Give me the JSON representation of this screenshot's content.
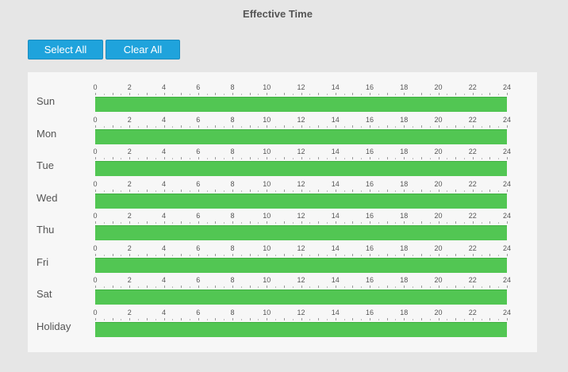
{
  "header": {
    "title": "Effective Time"
  },
  "toolbar": {
    "select_all_label": "Select All",
    "clear_all_label": "Clear All"
  },
  "schedule": {
    "hour_labels": [
      "0",
      "2",
      "4",
      "6",
      "8",
      "10",
      "12",
      "14",
      "16",
      "18",
      "20",
      "22",
      "24"
    ],
    "days": [
      {
        "label": "Sun",
        "active_from_hour": 0,
        "active_to_hour": 24
      },
      {
        "label": "Mon",
        "active_from_hour": 0,
        "active_to_hour": 24
      },
      {
        "label": "Tue",
        "active_from_hour": 0,
        "active_to_hour": 24
      },
      {
        "label": "Wed",
        "active_from_hour": 0,
        "active_to_hour": 24
      },
      {
        "label": "Thu",
        "active_from_hour": 0,
        "active_to_hour": 24
      },
      {
        "label": "Fri",
        "active_from_hour": 0,
        "active_to_hour": 24
      },
      {
        "label": "Sat",
        "active_from_hour": 0,
        "active_to_hour": 24
      },
      {
        "label": "Holiday",
        "active_from_hour": 0,
        "active_to_hour": 24
      }
    ]
  },
  "colors": {
    "accent": "#1fa3dc",
    "active_bar": "#52c653",
    "panel_background": "#f7f7f7",
    "page_background": "#e6e6e6"
  }
}
